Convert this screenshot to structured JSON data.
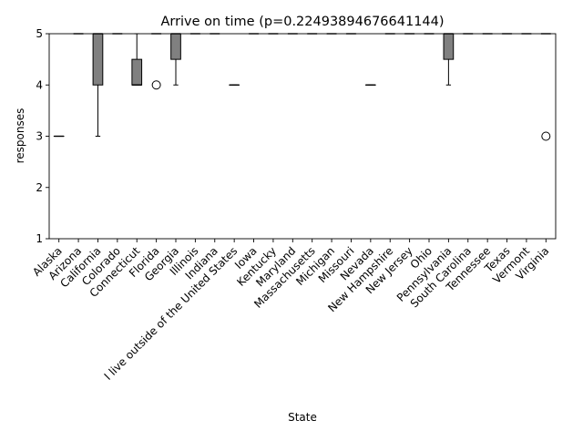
{
  "chart_data": {
    "type": "box",
    "title": "Arrive on time (p=0.22493894676641144)",
    "xlabel": "State",
    "ylabel": "responses",
    "ylim": [
      1,
      5
    ],
    "yticks": [
      1,
      2,
      3,
      4,
      5
    ],
    "grid": false,
    "box_color": "#808080",
    "categories": [
      "Alaska",
      "Arizona",
      "California",
      "Colorado",
      "Connecticut",
      "Florida",
      "Georgia",
      "Illinois",
      "Indiana",
      "I live outside of the United States",
      "Iowa",
      "Kentucky",
      "Maryland",
      "Massachusetts",
      "Michigan",
      "Missouri",
      "Nevada",
      "New Hampshire",
      "New Jersey",
      "Ohio",
      "Pennsylvania",
      "South Carolina",
      "Tennessee",
      "Texas",
      "Vermont",
      "Virginia"
    ],
    "boxes": [
      {
        "whislo": 3,
        "q1": 3,
        "med": 3,
        "q3": 3,
        "whishi": 3,
        "fliers": []
      },
      {
        "whislo": 5,
        "q1": 5,
        "med": 5,
        "q3": 5,
        "whishi": 5,
        "fliers": []
      },
      {
        "whislo": 3,
        "q1": 4,
        "med": 5,
        "q3": 5,
        "whishi": 5,
        "fliers": []
      },
      {
        "whislo": 5,
        "q1": 5,
        "med": 5,
        "q3": 5,
        "whishi": 5,
        "fliers": []
      },
      {
        "whislo": 4,
        "q1": 4,
        "med": 4,
        "q3": 4.5,
        "whishi": 5,
        "fliers": []
      },
      {
        "whislo": 5,
        "q1": 5,
        "med": 5,
        "q3": 5,
        "whishi": 5,
        "fliers": [
          4
        ]
      },
      {
        "whislo": 4,
        "q1": 4.5,
        "med": 5,
        "q3": 5,
        "whishi": 5,
        "fliers": []
      },
      {
        "whislo": 5,
        "q1": 5,
        "med": 5,
        "q3": 5,
        "whishi": 5,
        "fliers": []
      },
      {
        "whislo": 5,
        "q1": 5,
        "med": 5,
        "q3": 5,
        "whishi": 5,
        "fliers": []
      },
      {
        "whislo": 4,
        "q1": 4,
        "med": 4,
        "q3": 4,
        "whishi": 4,
        "fliers": []
      },
      {
        "whislo": 5,
        "q1": 5,
        "med": 5,
        "q3": 5,
        "whishi": 5,
        "fliers": []
      },
      {
        "whislo": 5,
        "q1": 5,
        "med": 5,
        "q3": 5,
        "whishi": 5,
        "fliers": []
      },
      {
        "whislo": 5,
        "q1": 5,
        "med": 5,
        "q3": 5,
        "whishi": 5,
        "fliers": []
      },
      {
        "whislo": 5,
        "q1": 5,
        "med": 5,
        "q3": 5,
        "whishi": 5,
        "fliers": []
      },
      {
        "whislo": 5,
        "q1": 5,
        "med": 5,
        "q3": 5,
        "whishi": 5,
        "fliers": []
      },
      {
        "whislo": 5,
        "q1": 5,
        "med": 5,
        "q3": 5,
        "whishi": 5,
        "fliers": []
      },
      {
        "whislo": 4,
        "q1": 4,
        "med": 4,
        "q3": 4,
        "whishi": 4,
        "fliers": []
      },
      {
        "whislo": 5,
        "q1": 5,
        "med": 5,
        "q3": 5,
        "whishi": 5,
        "fliers": []
      },
      {
        "whislo": 5,
        "q1": 5,
        "med": 5,
        "q3": 5,
        "whishi": 5,
        "fliers": []
      },
      {
        "whislo": 5,
        "q1": 5,
        "med": 5,
        "q3": 5,
        "whishi": 5,
        "fliers": []
      },
      {
        "whislo": 4,
        "q1": 4.5,
        "med": 5,
        "q3": 5,
        "whishi": 5,
        "fliers": []
      },
      {
        "whislo": 5,
        "q1": 5,
        "med": 5,
        "q3": 5,
        "whishi": 5,
        "fliers": []
      },
      {
        "whislo": 5,
        "q1": 5,
        "med": 5,
        "q3": 5,
        "whishi": 5,
        "fliers": []
      },
      {
        "whislo": 5,
        "q1": 5,
        "med": 5,
        "q3": 5,
        "whishi": 5,
        "fliers": []
      },
      {
        "whislo": 5,
        "q1": 5,
        "med": 5,
        "q3": 5,
        "whishi": 5,
        "fliers": []
      },
      {
        "whislo": 5,
        "q1": 5,
        "med": 5,
        "q3": 5,
        "whishi": 5,
        "fliers": [
          3
        ]
      }
    ]
  }
}
